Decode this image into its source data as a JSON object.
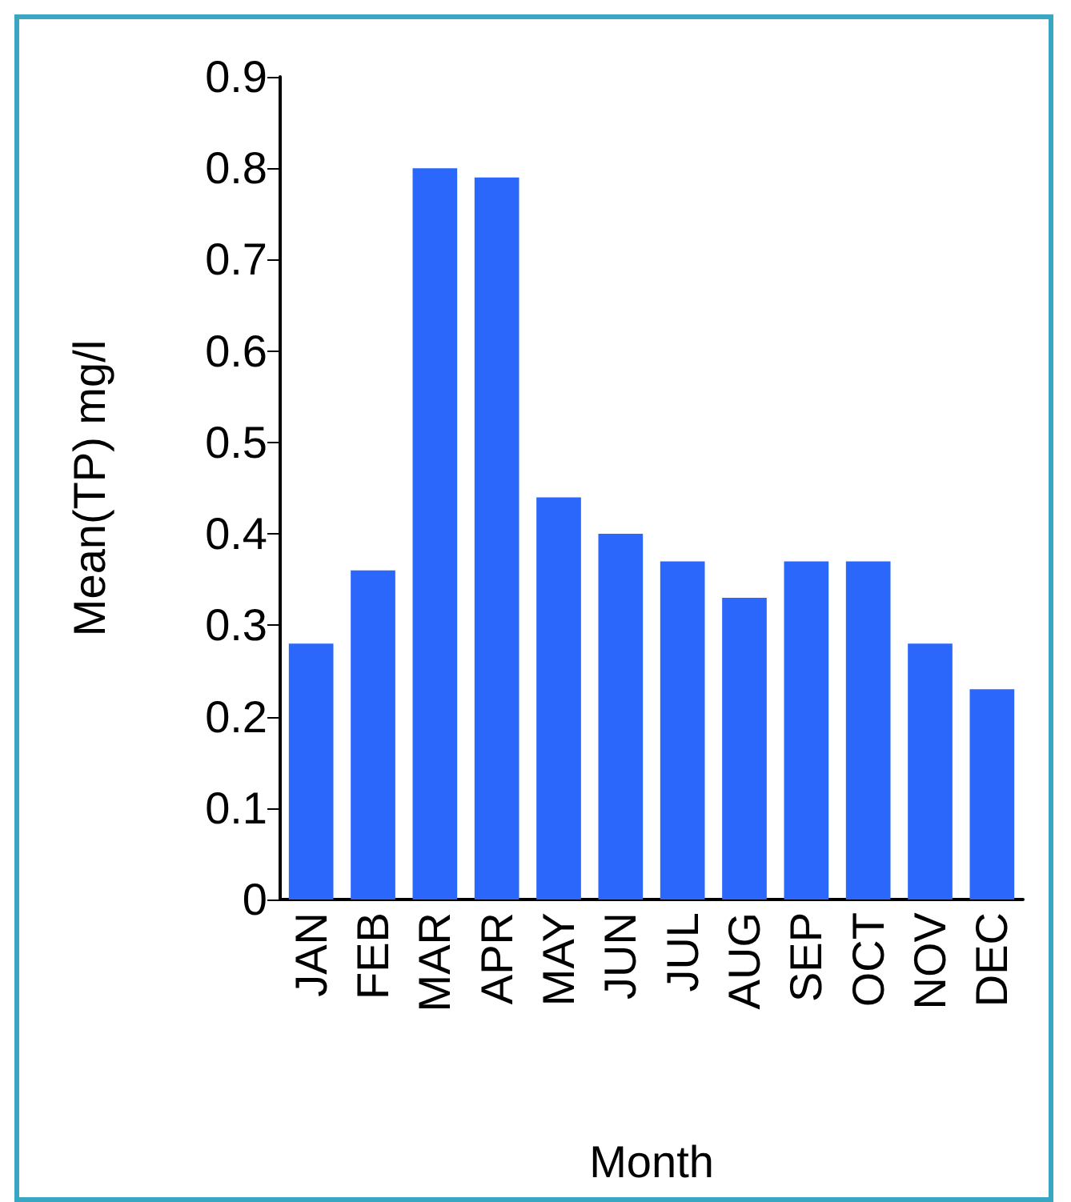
{
  "chart_data": {
    "type": "bar",
    "xlabel": "Month",
    "ylabel": "Mean(TP) mg/l",
    "categories": [
      "JAN",
      "FEB",
      "MAR",
      "APR",
      "MAY",
      "JUN",
      "JUL",
      "AUG",
      "SEP",
      "OCT",
      "NOV",
      "DEC"
    ],
    "values": [
      0.28,
      0.36,
      0.8,
      0.79,
      0.44,
      0.4,
      0.37,
      0.33,
      0.37,
      0.37,
      0.28,
      0.23
    ],
    "color": "#2b67fb",
    "ylim": [
      0,
      0.9
    ],
    "yticks": [
      0,
      0.1,
      0.2,
      0.3,
      0.4,
      0.5,
      0.6,
      0.7,
      0.8,
      0.9
    ],
    "grid": false
  }
}
